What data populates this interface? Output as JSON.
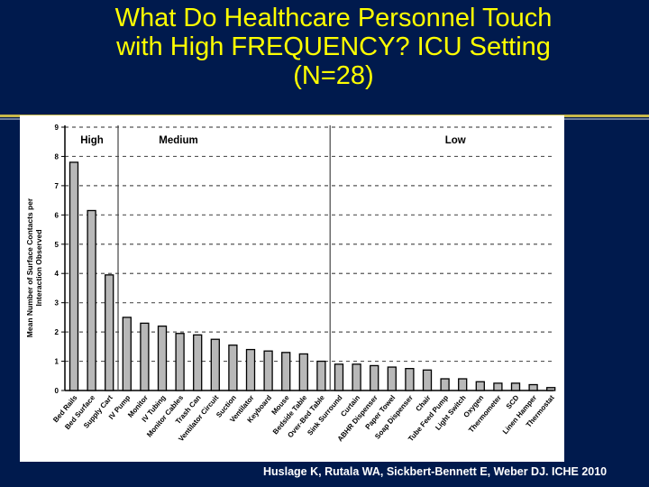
{
  "slide": {
    "title_lines": [
      "What Do Healthcare Personnel Touch",
      "with High FREQUENCY? ICU  Setting",
      "(N=28)"
    ],
    "citation": "Huslage K, Rutala WA, Sickbert-Bennett E, Weber DJ.  ICHE 2010"
  },
  "colors": {
    "background": "#001a4d",
    "title": "#ffff00",
    "bar_fill": "#b8b8b8",
    "bar_stroke": "#000000"
  },
  "chart_data": {
    "type": "bar",
    "ylabel": "Mean Number of Surface Contacts per Interaction Observed",
    "xlabel": "",
    "ylim": [
      0,
      9
    ],
    "yticks": [
      "0",
      "1",
      "2",
      "3",
      "4",
      "5",
      "6",
      "7",
      "8",
      "9"
    ],
    "grid": "horizontal dashed",
    "categories": [
      "Bed Rails",
      "Bed Surface",
      "Supply Cart",
      "IV Pump",
      "Monitor",
      "IV Tubing",
      "Monitor Cables",
      "Trash Can",
      "Ventilator Circuit",
      "Suction",
      "Ventilator",
      "Keyboard",
      "Mouse",
      "Bedside Table",
      "Over-Bed Table",
      "Sink Surround",
      "Curtain",
      "ABHR Dispenser",
      "Paper Towel",
      "Soap Dispenser",
      "Chair",
      "Tube Feed Pump",
      "Light Switch",
      "Oxygen",
      "Thermometer",
      "SCD",
      "Linen Hamper",
      "Thermostat"
    ],
    "values": [
      7.8,
      6.15,
      3.95,
      2.5,
      2.3,
      2.2,
      1.95,
      1.9,
      1.75,
      1.55,
      1.4,
      1.35,
      1.3,
      1.25,
      1.0,
      0.9,
      0.9,
      0.85,
      0.8,
      0.75,
      0.7,
      0.4,
      0.4,
      0.3,
      0.25,
      0.25,
      0.2,
      0.1
    ],
    "regions": [
      {
        "label": "High",
        "from_index": 0,
        "to_index": 2
      },
      {
        "label": "Medium",
        "from_index": 3,
        "to_index": 14
      },
      {
        "label": "Low",
        "from_index": 15,
        "to_index": 27
      }
    ]
  }
}
